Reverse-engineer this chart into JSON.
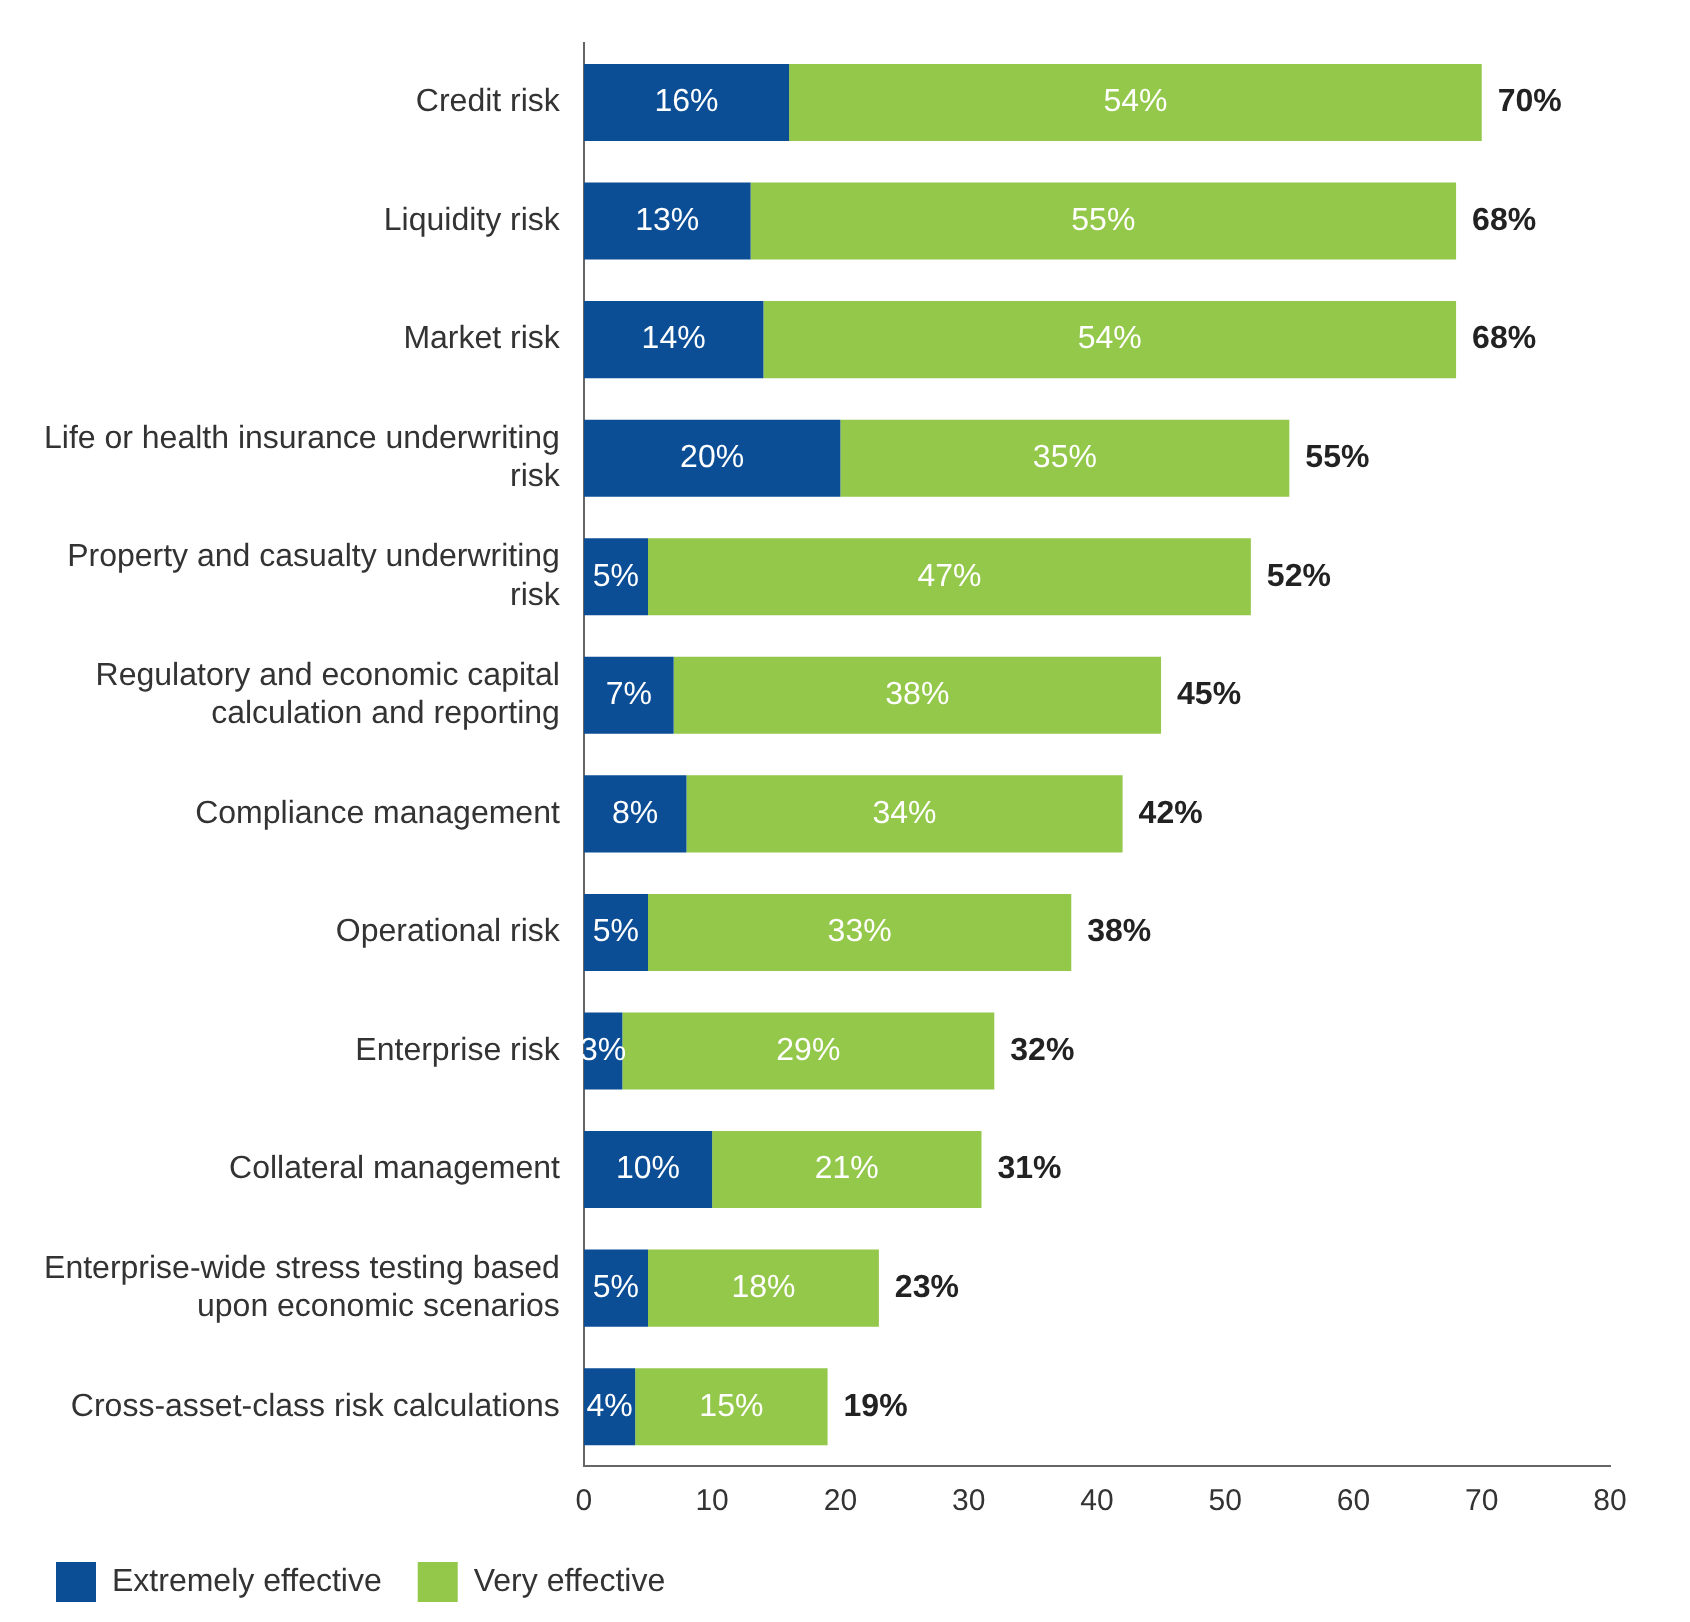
{
  "chart_data": {
    "type": "bar",
    "orientation": "horizontal",
    "stacked": true,
    "categories": [
      "Credit risk",
      "Liquidity risk",
      "Market risk",
      "Life or health insurance underwriting risk",
      "Property and casualty underwriting risk",
      "Regulatory and economic capital calculation and reporting",
      "Compliance management",
      "Operational risk",
      "Enterprise risk",
      "Collateral management",
      "Enterprise-wide stress testing based upon economic scenarios",
      "Cross-asset-class risk calculations"
    ],
    "series": [
      {
        "name": "Extremely effective",
        "color": "#0b4e96",
        "values": [
          16,
          13,
          14,
          20,
          5,
          7,
          8,
          5,
          3,
          10,
          5,
          4
        ],
        "value_labels": [
          "16%",
          "13%",
          "14%",
          "20%",
          "5%",
          "7%",
          "8%",
          "5%",
          "3%",
          "10%",
          "5%",
          "4%"
        ]
      },
      {
        "name": "Very effective",
        "color": "#93c84a",
        "values": [
          54,
          55,
          54,
          35,
          47,
          38,
          34,
          33,
          29,
          21,
          18,
          15
        ],
        "value_labels": [
          "54%",
          "55%",
          "54%",
          "35%",
          "47%",
          "38%",
          "34%",
          "33%",
          "29%",
          "21%",
          "18%",
          "15%"
        ]
      }
    ],
    "totals": [
      "70%",
      "68%",
      "68%",
      "55%",
      "52%",
      "45%",
      "42%",
      "38%",
      "32%",
      "31%",
      "23%",
      "19%"
    ],
    "xlim": [
      0,
      80
    ],
    "xticks": [
      0,
      10,
      20,
      30,
      40,
      50,
      60,
      70,
      80
    ],
    "grid": false,
    "legend": "bottom left"
  }
}
